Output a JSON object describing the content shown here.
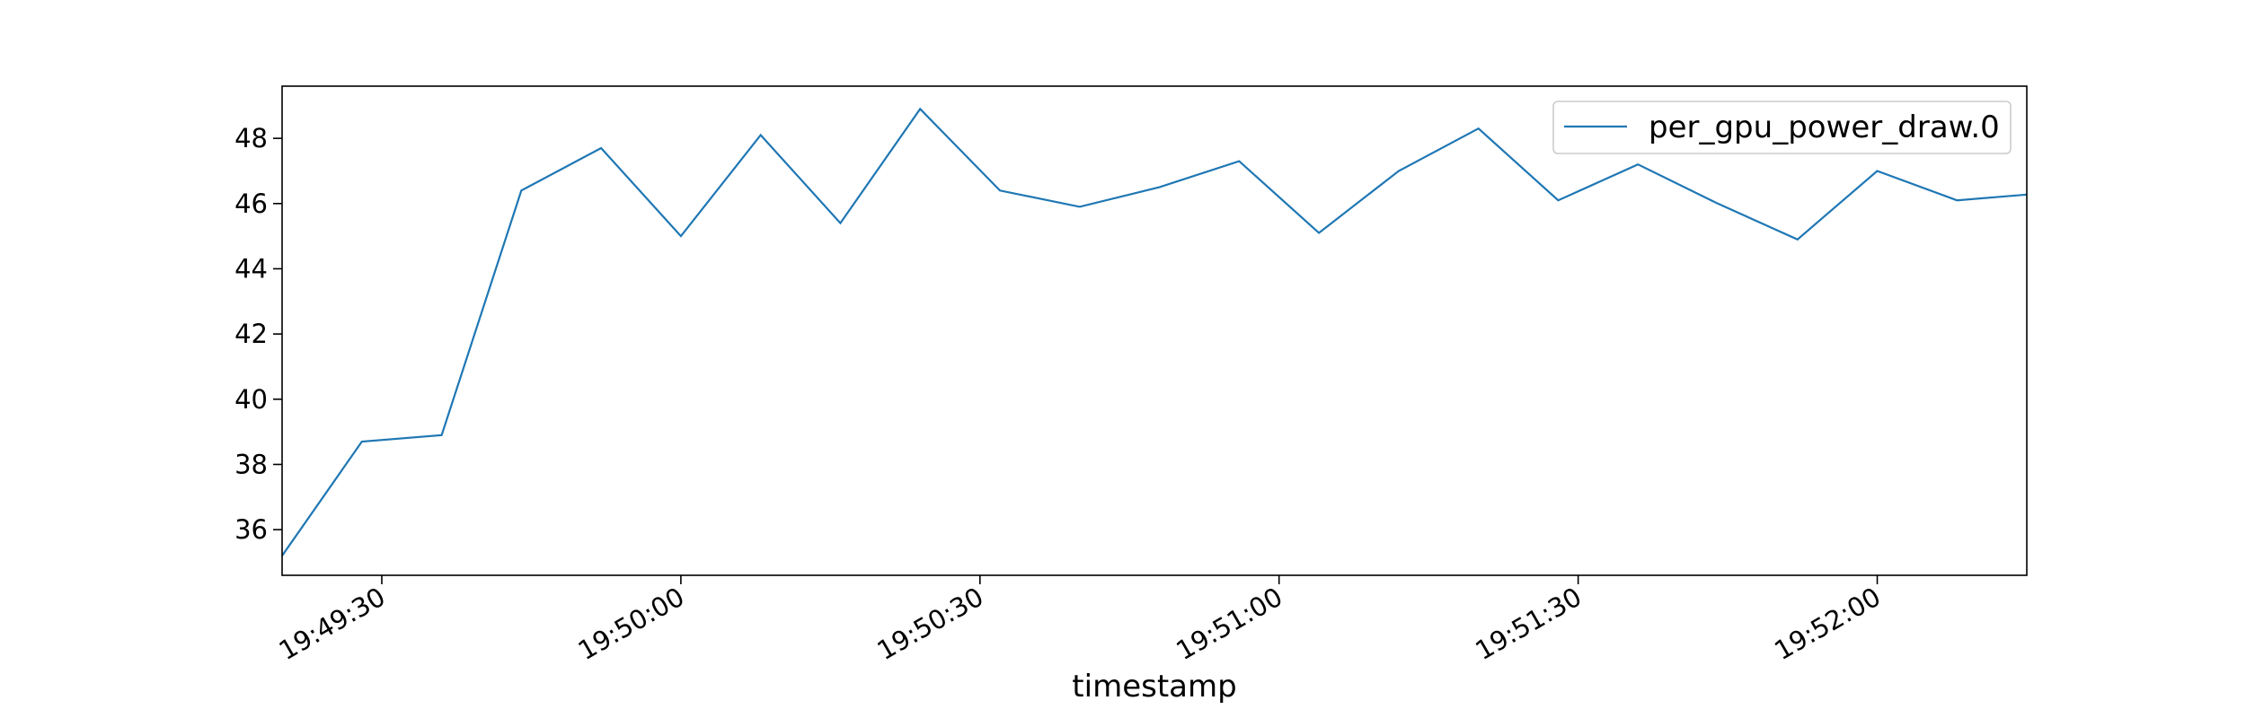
{
  "chart_data": {
    "type": "line",
    "title": "",
    "xlabel": "timestamp",
    "ylabel": "",
    "x": [
      "19:49:20",
      "19:49:28",
      "19:49:36",
      "19:49:44",
      "19:49:52",
      "19:50:00",
      "19:50:08",
      "19:50:16",
      "19:50:24",
      "19:50:32",
      "19:50:40",
      "19:50:48",
      "19:50:56",
      "19:51:04",
      "19:51:12",
      "19:51:20",
      "19:51:28",
      "19:51:36",
      "19:51:44",
      "19:51:52",
      "19:52:00",
      "19:52:08",
      "19:52:16"
    ],
    "series": [
      {
        "name": "per_gpu_power_draw.0",
        "values": [
          35.2,
          38.7,
          38.9,
          46.4,
          47.7,
          45.0,
          48.1,
          45.4,
          48.9,
          46.4,
          45.9,
          46.5,
          47.3,
          45.1,
          47.0,
          48.3,
          46.1,
          47.2,
          46.0,
          44.9,
          47.0,
          46.1,
          46.3
        ]
      }
    ],
    "xlim": [
      "19:49:20",
      "19:52:15"
    ],
    "ylim": [
      34.6,
      49.6
    ],
    "xticks": [
      "19:49:30",
      "19:50:00",
      "19:50:30",
      "19:51:00",
      "19:51:30",
      "19:52:00"
    ],
    "yticks": [
      36,
      38,
      40,
      42,
      44,
      46,
      48
    ],
    "grid": false,
    "legend_position": "top-right",
    "colors": {
      "series": "#1f77b4",
      "axes": "#000000"
    }
  }
}
